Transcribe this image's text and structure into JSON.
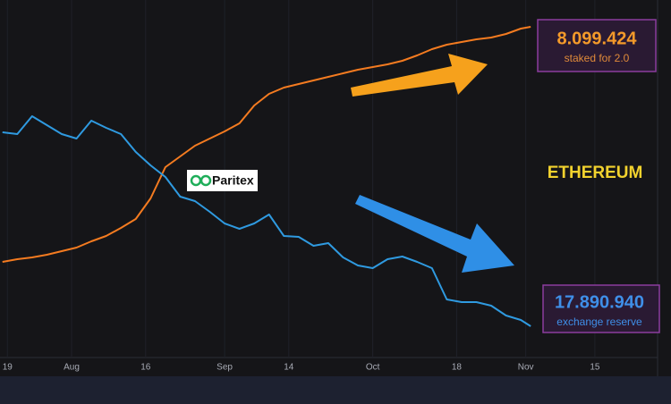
{
  "chart_data": {
    "type": "line",
    "x": [
      -1,
      2,
      5,
      8,
      11,
      14,
      17,
      20,
      23,
      26,
      29,
      32,
      35,
      38,
      41,
      44,
      47,
      50,
      53,
      56,
      59,
      62,
      65,
      68,
      71,
      74,
      77,
      80,
      83,
      86,
      89,
      92,
      95,
      98,
      101,
      104,
      106
    ],
    "series": [
      {
        "name": "staked for 2.0",
        "color": "#f47b20",
        "values": [
          26.75,
          27.5,
          28,
          28.75,
          29.75,
          30.75,
          32.5,
          34,
          36.25,
          38.75,
          44.5,
          53.25,
          56.25,
          59.25,
          61.25,
          63.25,
          65.5,
          70.5,
          73.75,
          75.5,
          76.5,
          77.5,
          78.5,
          79.5,
          80.5,
          81.25,
          82,
          83,
          84.5,
          86.25,
          87.5,
          88.25,
          89,
          89.5,
          90.5,
          92,
          92.5
        ]
      },
      {
        "name": "exchange reserve",
        "color": "#2f9ae0",
        "values": [
          63,
          62.5,
          67.5,
          65,
          62.5,
          61.25,
          66.25,
          64.25,
          62.5,
          57.5,
          53.75,
          50.5,
          45,
          43.75,
          40.75,
          37.5,
          36,
          37.5,
          40,
          34,
          33.75,
          31.25,
          32,
          28,
          25.75,
          25,
          27.5,
          28.25,
          26.75,
          25,
          16.25,
          15.5,
          15.5,
          14.5,
          11.75,
          10.5,
          8.75
        ]
      }
    ],
    "xlim": [
      -1.5,
      131.7
    ],
    "xticks": [
      {
        "value": 0,
        "label": "19"
      },
      {
        "value": 13,
        "label": "Aug"
      },
      {
        "value": 28,
        "label": "16"
      },
      {
        "value": 44,
        "label": "Sep"
      },
      {
        "value": 57,
        "label": "14"
      },
      {
        "value": 74,
        "label": "Oct"
      },
      {
        "value": 91,
        "label": "18"
      },
      {
        "value": 105,
        "label": "Nov"
      },
      {
        "value": 119,
        "label": "15"
      }
    ],
    "ylim": [
      0,
      100
    ],
    "grid": true,
    "staked_value": "8.099.424",
    "reserve_value": "17.890.940",
    "asset": "ETHEREUM",
    "watermark": "Paritex"
  }
}
